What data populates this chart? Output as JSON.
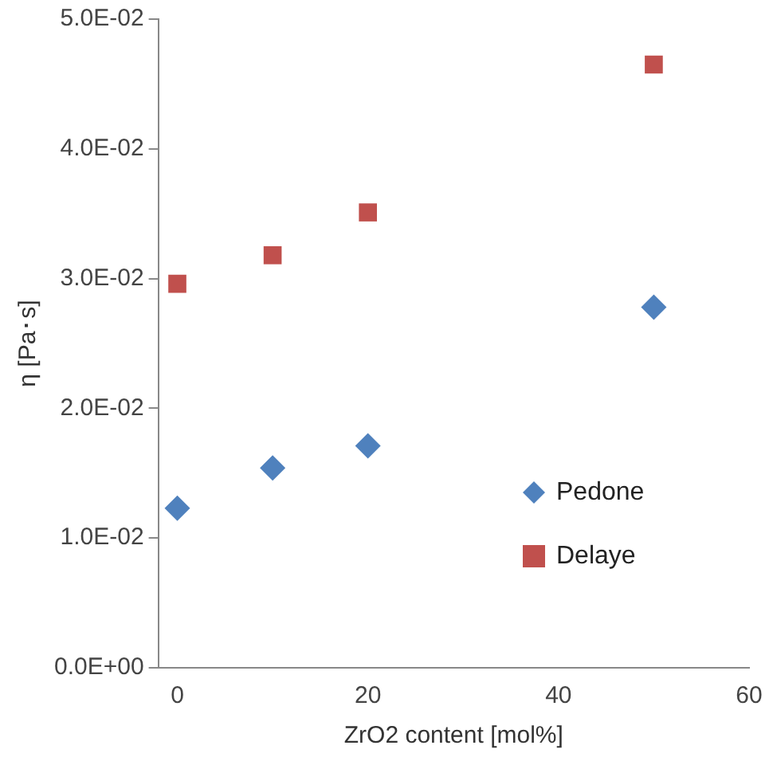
{
  "chart_data": {
    "type": "scatter",
    "xlabel": "ZrO2 content [mol%]",
    "ylabel": "η [Pa･s]",
    "x": [
      0,
      10,
      20,
      50
    ],
    "series": [
      {
        "name": "Pedone",
        "color": "#4f81bd",
        "marker": "diamond",
        "values": [
          0.0123,
          0.0154,
          0.0171,
          0.0278
        ]
      },
      {
        "name": "Delaye",
        "color": "#c0504d",
        "marker": "square",
        "values": [
          0.0296,
          0.0318,
          0.0351,
          0.0465
        ]
      }
    ],
    "xlim": [
      -2,
      60
    ],
    "xticks": [
      0,
      20,
      40,
      60
    ],
    "ylim": [
      0,
      0.05
    ],
    "yticks": [
      {
        "value": 0,
        "label": "0.0E+00"
      },
      {
        "value": 0.01,
        "label": "1.0E-02"
      },
      {
        "value": 0.02,
        "label": "2.0E-02"
      },
      {
        "value": 0.03,
        "label": "3.0E-02"
      },
      {
        "value": 0.04,
        "label": "4.0E-02"
      },
      {
        "value": 0.05,
        "label": "5.0E-02"
      }
    ],
    "grid": false,
    "legend": "bottom right"
  }
}
